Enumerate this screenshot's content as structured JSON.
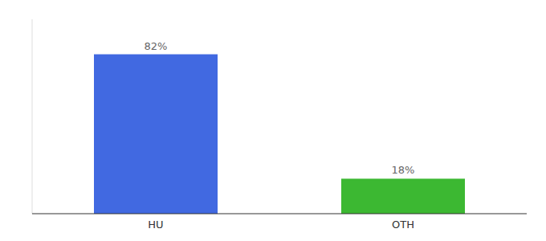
{
  "chart_data": {
    "type": "bar",
    "categories": [
      "HU",
      "OTH"
    ],
    "values": [
      82,
      18
    ],
    "value_labels": [
      "82%",
      "18%"
    ],
    "colors": [
      "#4169e1",
      "#3cb832"
    ],
    "ylim": [
      0,
      100
    ],
    "data_labels": true,
    "tick_labels": "x",
    "grid": false
  }
}
